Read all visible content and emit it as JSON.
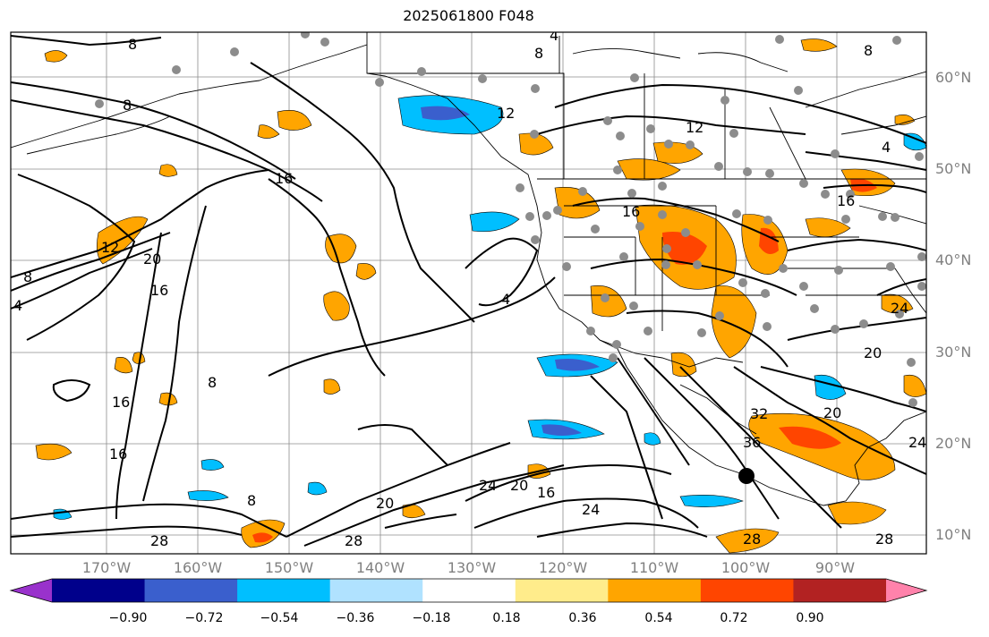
{
  "title": "2025061800 F048",
  "lat_labels": [
    "60°N",
    "50°N",
    "40°N",
    "30°N",
    "20°N",
    "10°N"
  ],
  "lon_labels": [
    "170°W",
    "160°W",
    "150°W",
    "140°W",
    "130°W",
    "120°W",
    "110°W",
    "100°W",
    "90°W"
  ],
  "contour_labels": [
    "8",
    "8",
    "8",
    "12",
    "12",
    "16",
    "16",
    "20",
    "16",
    "8",
    "4",
    "4",
    "8",
    "12",
    "16",
    "16",
    "4",
    "8",
    "20",
    "24",
    "16",
    "16",
    "20",
    "24",
    "28",
    "28",
    "32",
    "36",
    "28",
    "28",
    "20",
    "24",
    "24",
    "8",
    "4",
    "20"
  ],
  "colorbar": {
    "ticks": [
      "−0.90",
      "−0.72",
      "−0.54",
      "−0.36",
      "−0.18",
      "0.18",
      "0.36",
      "0.54",
      "0.72",
      "0.90"
    ],
    "colors": [
      "#9932cc",
      "#00008b",
      "#3a5fcd",
      "#00bfff",
      "#b0e2ff",
      "#ffffff",
      "#ffec8b",
      "#ffa500",
      "#ff4500",
      "#b22222",
      "#ff82ab"
    ]
  }
}
